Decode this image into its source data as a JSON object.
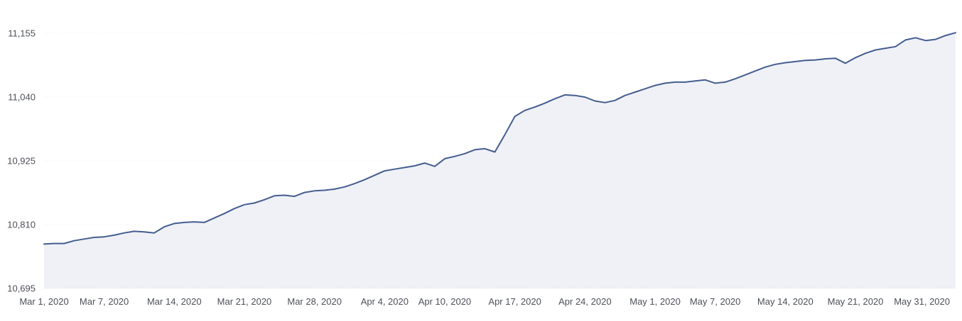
{
  "chart_data": {
    "type": "area",
    "title": "",
    "xlabel": "",
    "ylabel": "",
    "legend": "none",
    "grid": "horizontal-dotted",
    "start_label": "Mar 1, 2020",
    "end_label": "May 31, 2020",
    "x_unit": "day",
    "ylim": [
      10695,
      11155
    ],
    "y_ticks": [
      {
        "value": 11155,
        "label": "11,155"
      },
      {
        "value": 11040,
        "label": "11,040"
      },
      {
        "value": 10925,
        "label": "10,925"
      },
      {
        "value": 10810,
        "label": "10,810"
      },
      {
        "value": 10695,
        "label": "10,695"
      }
    ],
    "x_ticks": [
      {
        "label": "Mar 1, 2020",
        "day": 0
      },
      {
        "label": "Mar 7, 2020",
        "day": 6
      },
      {
        "label": "Mar 14, 2020",
        "day": 13
      },
      {
        "label": "Mar 21, 2020",
        "day": 20
      },
      {
        "label": "Mar 28, 2020",
        "day": 27
      },
      {
        "label": "Apr 4, 2020",
        "day": 34
      },
      {
        "label": "Apr 10, 2020",
        "day": 40
      },
      {
        "label": "Apr 17, 2020",
        "day": 47
      },
      {
        "label": "Apr 24, 2020",
        "day": 54
      },
      {
        "label": "May 1, 2020",
        "day": 61
      },
      {
        "label": "May 7, 2020",
        "day": 67
      },
      {
        "label": "May 14, 2020",
        "day": 74
      },
      {
        "label": "May 21, 2020",
        "day": 81
      },
      {
        "label": "May 31, 2020",
        "day": 91
      }
    ],
    "values": [
      10775,
      10776,
      10776,
      10781,
      10784,
      10787,
      10788,
      10791,
      10795,
      10798,
      10797,
      10795,
      10806,
      10812,
      10814,
      10815,
      10814,
      10822,
      10830,
      10839,
      10846,
      10849,
      10855,
      10862,
      10863,
      10861,
      10868,
      10871,
      10872,
      10874,
      10878,
      10884,
      10891,
      10899,
      10907,
      10910,
      10913,
      10916,
      10921,
      10915,
      10929,
      10933,
      10938,
      10945,
      10947,
      10941,
      10972,
      11005,
      11016,
      11022,
      11029,
      11037,
      11044,
      11043,
      11040,
      11033,
      11030,
      11034,
      11043,
      11049,
      11055,
      11061,
      11065,
      11067,
      11067,
      11069,
      11071,
      11065,
      11067,
      11073,
      11080,
      11087,
      11094,
      11099,
      11102,
      11104,
      11106,
      11107,
      11109,
      11110,
      11101,
      11111,
      11119,
      11125,
      11128,
      11131,
      11143,
      11147,
      11142,
      11144,
      11151,
      11156
    ],
    "colors": {
      "line": "#455d8f",
      "fill": "#eff1f7",
      "grid": "#e9ebf1",
      "baseline": "#d9dce5",
      "tick_text": "#4d5058",
      "background": "#ffffff"
    }
  }
}
